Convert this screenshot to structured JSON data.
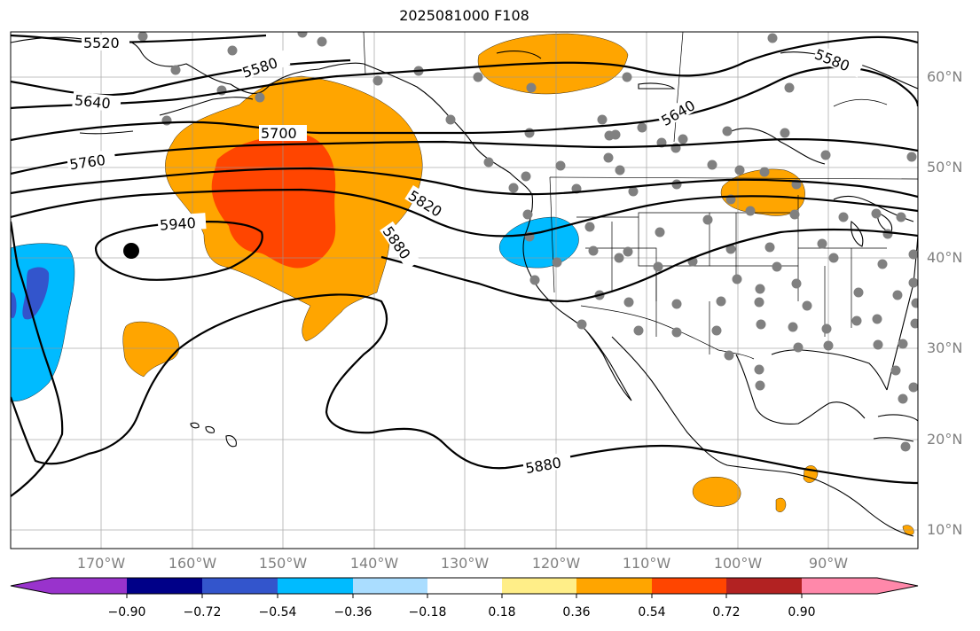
{
  "title": "2025081000 F108",
  "lat_labels": [
    "60°N",
    "50°N",
    "40°N",
    "30°N",
    "20°N",
    "10°N"
  ],
  "lon_labels": [
    "170°W",
    "160°W",
    "150°W",
    "140°W",
    "130°W",
    "120°W",
    "110°W",
    "100°W",
    "90°W"
  ],
  "contours": {
    "labels": [
      "5520",
      "5580",
      "5580",
      "5640",
      "5640",
      "5700",
      "5760",
      "5820",
      "5880",
      "5880",
      "5940"
    ]
  },
  "colorbar": {
    "ticks": [
      "−0.90",
      "−0.72",
      "−0.54",
      "−0.36",
      "−0.18",
      "0.18",
      "0.36",
      "0.54",
      "0.72",
      "0.90"
    ],
    "colors": [
      "#9933cc",
      "#000088",
      "#3355cc",
      "#00bbff",
      "#aaddff",
      "#ffffff",
      "#ffee88",
      "#ffa500",
      "#ff4500",
      "#b22222",
      "#ff88aa"
    ]
  },
  "anomaly_colors": {
    "orange": "#ffa500",
    "red_orange": "#ff4500",
    "light_blue": "#00bbff",
    "dark_blue": "#3355cc"
  }
}
